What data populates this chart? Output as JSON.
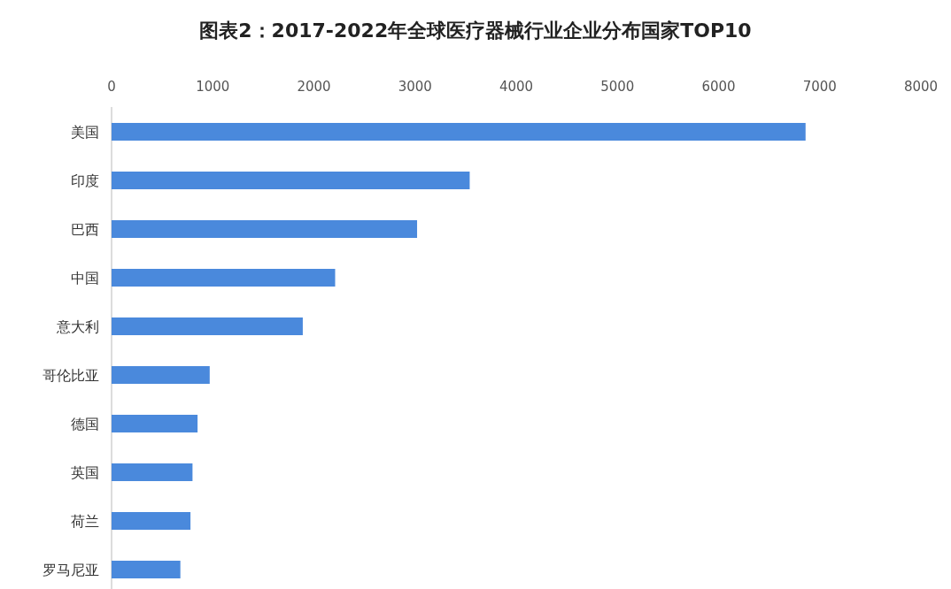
{
  "chart_data": {
    "type": "bar",
    "orientation": "horizontal",
    "title": "图表2：2017-2022年全球医疗器械行业企业分布国家TOP10",
    "categories": [
      "美国",
      "印度",
      "巴西",
      "中国",
      "意大利",
      "哥伦比亚",
      "德国",
      "英国",
      "荷兰",
      "罗马尼亚"
    ],
    "values": [
      6860,
      3540,
      3020,
      2210,
      1890,
      970,
      850,
      800,
      780,
      680
    ],
    "color": "#4a89dc",
    "xlim": [
      0,
      8000
    ],
    "xticks": [
      0,
      1000,
      2000,
      3000,
      4000,
      5000,
      6000,
      7000,
      8000
    ],
    "grid": false
  }
}
